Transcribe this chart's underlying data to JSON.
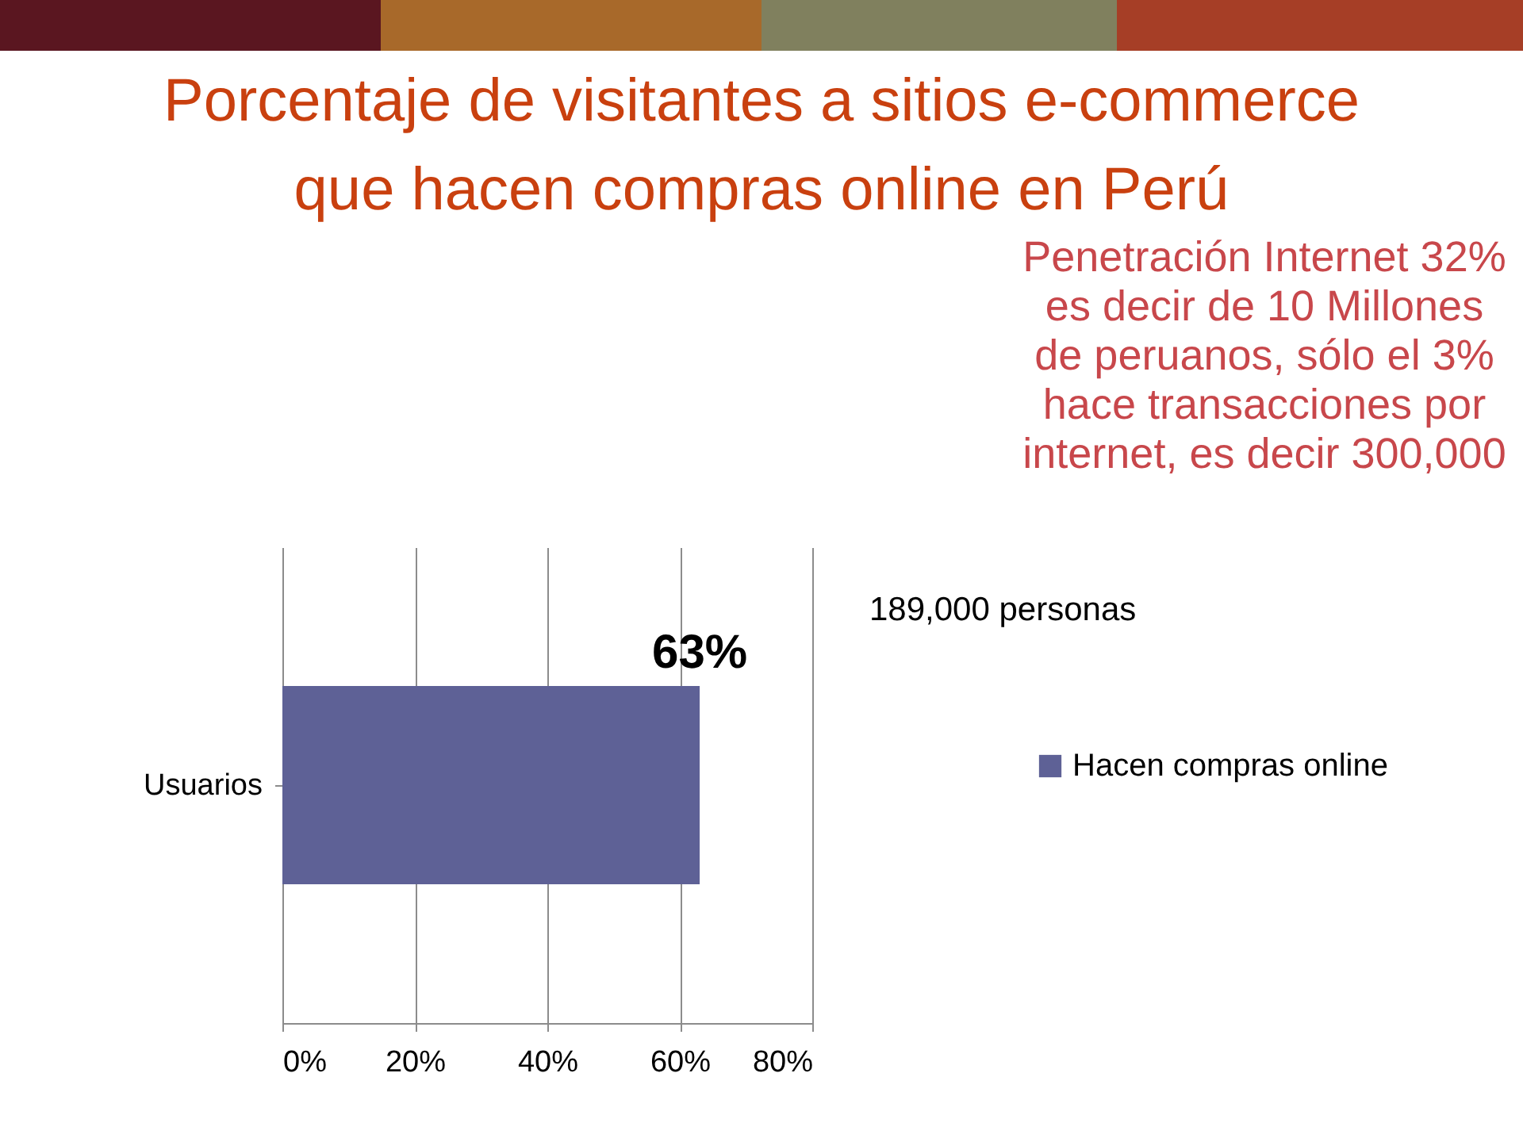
{
  "chart_data": {
    "type": "bar",
    "orientation": "horizontal",
    "title": "Porcentaje de visitantes a sitios e-commerce que hacen compras online en Perú",
    "categories": [
      "Usuarios"
    ],
    "series": [
      {
        "name": "Hacen compras online",
        "color": "#5e6196",
        "values": [
          63
        ],
        "value_labels": [
          "63%"
        ]
      }
    ],
    "xlim": [
      0,
      80
    ],
    "xticks": [
      {
        "value": 0,
        "label": "0%"
      },
      {
        "value": 20,
        "label": "20%"
      },
      {
        "value": 40,
        "label": "40%"
      },
      {
        "value": 60,
        "label": "60%"
      },
      {
        "value": 80,
        "label": "80%"
      }
    ],
    "grid": "x",
    "legend": "right",
    "annotations": [
      "Penetración Internet 32% es decir de 10 Millones de peruanos, sólo el 3% hace transacciones por internet, es decir 300,000",
      "189,000 personas"
    ]
  }
}
